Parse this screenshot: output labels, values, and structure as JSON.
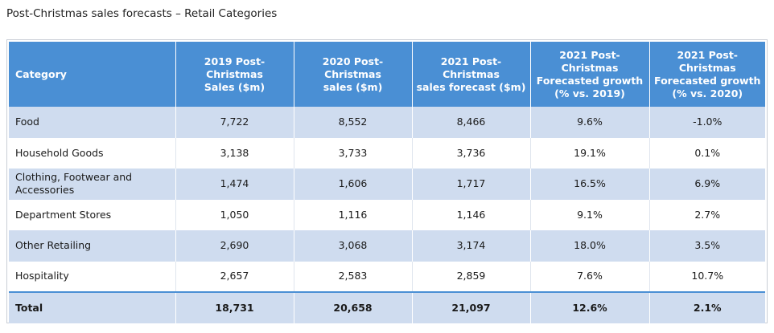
{
  "title": "Post-Christmas sales forecasts – Retail Categories",
  "table": {
    "headers": [
      [
        "Category"
      ],
      [
        "2019 Post-Christmas",
        "Sales ($m)"
      ],
      [
        "2020 Post-Christmas",
        "sales ($m)"
      ],
      [
        "2021 Post-Christmas",
        "sales forecast ($m)"
      ],
      [
        "2021 Post-Christmas",
        "Forecasted growth",
        "(% vs. 2019)"
      ],
      [
        "2021 Post-Christmas",
        "Forecasted growth",
        "(% vs. 2020)"
      ]
    ],
    "rows": [
      {
        "category": [
          "Food"
        ],
        "values": [
          "7,722",
          "8,552",
          "8,466",
          "9.6%",
          "-1.0%"
        ]
      },
      {
        "category": [
          "Household Goods"
        ],
        "values": [
          "3,138",
          "3,733",
          "3,736",
          "19.1%",
          "0.1%"
        ]
      },
      {
        "category": [
          "Clothing, Footwear and",
          "Accessories"
        ],
        "values": [
          "1,474",
          "1,606",
          "1,717",
          "16.5%",
          "6.9%"
        ]
      },
      {
        "category": [
          "Department Stores"
        ],
        "values": [
          "1,050",
          "1,116",
          "1,146",
          "9.1%",
          "2.7%"
        ]
      },
      {
        "category": [
          "Other Retailing"
        ],
        "values": [
          "2,690",
          "3,068",
          "3,174",
          "18.0%",
          "3.5%"
        ]
      },
      {
        "category": [
          "Hospitality"
        ],
        "values": [
          "2,657",
          "2,583",
          "2,859",
          "7.6%",
          "10.7%"
        ]
      }
    ],
    "total": {
      "category": "Total",
      "values": [
        "18,731",
        "20,658",
        "21,097",
        "12.6%",
        "2.1%"
      ]
    }
  },
  "colors": {
    "header_bg": "#4a8fd4",
    "band_bg": "#cfdcef"
  }
}
